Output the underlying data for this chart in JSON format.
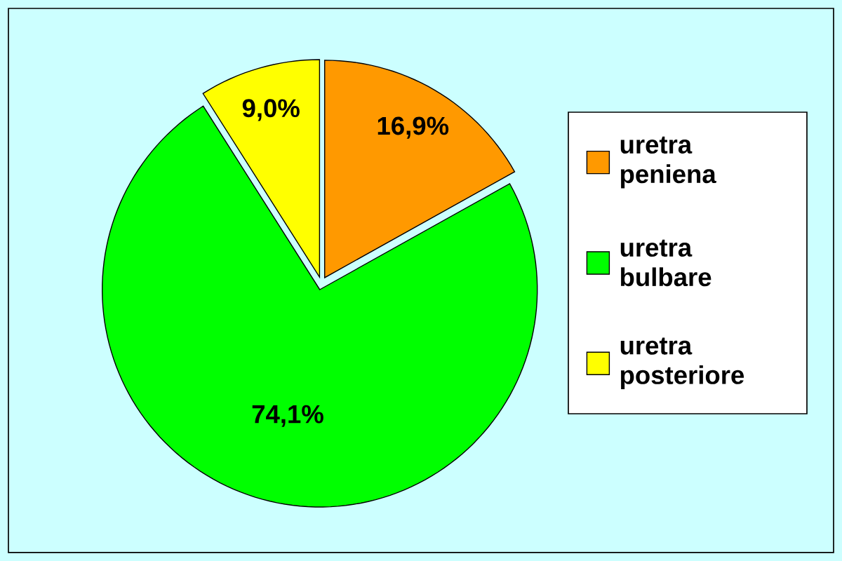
{
  "chart_data": {
    "type": "pie",
    "categories": [
      "uretra peniena",
      "uretra bulbare",
      "uretra posteriore"
    ],
    "values": [
      16.9,
      74.1,
      9.0
    ],
    "colors": [
      "#ff9900",
      "#00ff00",
      "#ffff00"
    ],
    "value_labels": [
      "16,9%",
      "74,1%",
      "9,0%"
    ],
    "legend": "right"
  }
}
